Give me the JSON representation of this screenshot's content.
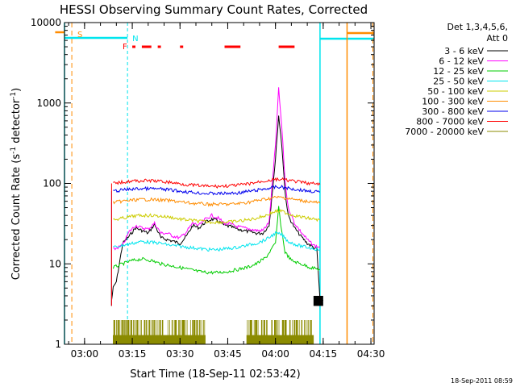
{
  "chart_data": {
    "type": "line",
    "title": "HESSI Observing Summary Count Rates, Corrected",
    "xlabel": "Start Time (18-Sep-11 02:53:42)",
    "ylabel": "Corrected Count Rate (s",
    "ylabel_sup1": "-1",
    "ylabel_mid": " detector",
    "ylabel_sup2": "-1",
    "ylabel_end": ")",
    "footer": "18-Sep-2011 08:59",
    "y_scale": "log",
    "ylim": [
      1,
      10000
    ],
    "xlim": [
      "02:53:42",
      "04:31:00"
    ],
    "x_ticks": [
      "03:00",
      "03:15",
      "03:30",
      "03:45",
      "04:00",
      "04:15",
      "04:30"
    ],
    "y_ticks": [
      "1",
      "10",
      "100",
      "1000",
      "10000"
    ],
    "legend": {
      "header_line1": "Det 1,3,4,5,6,",
      "header_line2": "Att 0",
      "placement": "top-right, outside plot"
    },
    "flags": {
      "saa_label": "S",
      "night_label": "N",
      "flare_label": "F",
      "saa_color": "#ff8c00",
      "night_color": "#00e5ee",
      "flare_color": "#ff0000",
      "saa_start": "02:56:00",
      "saa_end_1": "03:08:30",
      "saa_return": "04:22:30",
      "night_end": "03:13:30",
      "night_return": "04:14:00",
      "flare_segments": [
        [
          "03:15:00",
          "03:16:00"
        ],
        [
          "03:18:00",
          "03:21:00"
        ],
        [
          "03:23:00",
          "03:24:00"
        ],
        [
          "03:30:00",
          "03:31:00"
        ],
        [
          "03:44:00",
          "03:49:00"
        ],
        [
          "04:01:00",
          "04:06:00"
        ]
      ]
    },
    "data_window": [
      "03:08:30",
      "04:15:00"
    ],
    "series": [
      {
        "name": "3 - 6 keV",
        "color": "#000000",
        "x": [
          "03:08:30",
          "03:09:00",
          "03:10:00",
          "03:12:00",
          "03:14:00",
          "03:16:00",
          "03:18:00",
          "03:20:00",
          "03:22:00",
          "03:24:00",
          "03:26:00",
          "03:28:00",
          "03:30:00",
          "03:32:00",
          "03:34:00",
          "03:36:00",
          "03:38:00",
          "03:40:00",
          "03:42:00",
          "03:44:00",
          "03:46:00",
          "03:48:00",
          "03:50:00",
          "03:52:00",
          "03:54:00",
          "03:56:00",
          "03:58:00",
          "04:00:00",
          "04:01:00",
          "04:02:00",
          "04:03:00",
          "04:04:00",
          "04:06:00",
          "04:08:00",
          "04:10:00",
          "04:12:00",
          "04:13:00",
          "04:14:00",
          "04:15:00"
        ],
        "y": [
          3.5,
          5,
          6,
          18,
          22,
          28,
          26,
          24,
          31,
          21,
          20,
          19,
          18,
          22,
          30,
          28,
          33,
          36,
          34,
          30,
          29,
          27,
          26,
          25,
          24,
          24,
          30,
          200,
          700,
          300,
          80,
          40,
          28,
          22,
          18,
          16,
          15,
          3.5,
          3.5
        ]
      },
      {
        "name": "6 - 12 keV",
        "color": "#ff00ff",
        "x": [
          "03:09:00",
          "03:12:00",
          "03:14:00",
          "03:16:00",
          "03:18:00",
          "03:20:00",
          "03:22:00",
          "03:24:00",
          "03:26:00",
          "03:28:00",
          "03:30:00",
          "03:32:00",
          "03:34:00",
          "03:36:00",
          "03:38:00",
          "03:40:00",
          "03:42:00",
          "03:44:00",
          "03:46:00",
          "03:48:00",
          "03:50:00",
          "03:52:00",
          "03:54:00",
          "03:56:00",
          "03:58:00",
          "04:00:00",
          "04:01:00",
          "04:02:00",
          "04:03:00",
          "04:04:00",
          "04:06:00",
          "04:08:00",
          "04:10:00",
          "04:12:00",
          "04:14:00"
        ],
        "y": [
          15,
          17,
          25,
          30,
          28,
          27,
          32,
          24,
          24,
          22,
          21,
          25,
          32,
          30,
          36,
          40,
          37,
          32,
          31,
          29,
          28,
          27,
          26,
          26,
          33,
          300,
          1500,
          500,
          110,
          50,
          32,
          25,
          20,
          17,
          16
        ]
      },
      {
        "name": "12 - 25 keV",
        "color": "#00cc00",
        "x": [
          "03:09:00",
          "03:12:00",
          "03:15:00",
          "03:18:00",
          "03:21:00",
          "03:24:00",
          "03:27:00",
          "03:30:00",
          "03:33:00",
          "03:36:00",
          "03:39:00",
          "03:42:00",
          "03:45:00",
          "03:48:00",
          "03:51:00",
          "03:54:00",
          "03:57:00",
          "04:00:00",
          "04:01:00",
          "04:02:00",
          "04:03:00",
          "04:05:00",
          "04:08:00",
          "04:11:00",
          "04:14:00"
        ],
        "y": [
          9,
          10,
          11,
          11.5,
          11,
          10,
          9.5,
          9,
          8.5,
          8,
          7.8,
          7.8,
          8,
          8.5,
          9,
          10,
          12,
          18,
          50,
          25,
          14,
          11,
          10,
          9,
          8.5
        ]
      },
      {
        "name": "25 - 50 keV",
        "color": "#00e5ee",
        "x": [
          "03:09:00",
          "03:12:00",
          "03:15:00",
          "03:18:00",
          "03:21:00",
          "03:24:00",
          "03:27:00",
          "03:30:00",
          "03:33:00",
          "03:36:00",
          "03:39:00",
          "03:42:00",
          "03:45:00",
          "03:48:00",
          "03:51:00",
          "03:54:00",
          "03:57:00",
          "04:00:00",
          "04:02:00",
          "04:04:00",
          "04:07:00",
          "04:10:00",
          "04:14:00"
        ],
        "y": [
          16,
          17,
          18,
          19,
          18.5,
          18,
          17,
          16.5,
          16,
          15.5,
          15,
          15,
          15.5,
          16,
          17,
          18,
          20,
          24,
          23,
          19,
          17,
          16,
          15
        ]
      },
      {
        "name": "50 - 100 keV",
        "color": "#cccc00",
        "x": [
          "03:09:00",
          "03:12:00",
          "03:15:00",
          "03:18:00",
          "03:21:00",
          "03:24:00",
          "03:27:00",
          "03:30:00",
          "03:33:00",
          "03:36:00",
          "03:39:00",
          "03:42:00",
          "03:45:00",
          "03:48:00",
          "03:51:00",
          "03:54:00",
          "03:57:00",
          "04:00:00",
          "04:02:00",
          "04:04:00",
          "04:07:00",
          "04:10:00",
          "04:14:00"
        ],
        "y": [
          35,
          37,
          39,
          40,
          40,
          39,
          38,
          36,
          35,
          34,
          33,
          33,
          33,
          34,
          35,
          37,
          40,
          45,
          45,
          42,
          39,
          37,
          35
        ]
      },
      {
        "name": "100 - 300 keV",
        "color": "#ff8c00",
        "x": [
          "03:09:00",
          "03:12:00",
          "03:15:00",
          "03:18:00",
          "03:21:00",
          "03:24:00",
          "03:27:00",
          "03:30:00",
          "03:33:00",
          "03:36:00",
          "03:39:00",
          "03:42:00",
          "03:45:00",
          "03:48:00",
          "03:51:00",
          "03:54:00",
          "03:57:00",
          "04:00:00",
          "04:02:00",
          "04:04:00",
          "04:07:00",
          "04:10:00",
          "04:14:00"
        ],
        "y": [
          58,
          60,
          62,
          63,
          63,
          62,
          61,
          59,
          57,
          56,
          55,
          55,
          55,
          56,
          58,
          61,
          64,
          67,
          67,
          65,
          62,
          60,
          57
        ]
      },
      {
        "name": "300 - 800 keV",
        "color": "#0000ee",
        "x": [
          "03:09:00",
          "03:12:00",
          "03:15:00",
          "03:18:00",
          "03:21:00",
          "03:24:00",
          "03:27:00",
          "03:30:00",
          "03:33:00",
          "03:36:00",
          "03:39:00",
          "03:42:00",
          "03:45:00",
          "03:48:00",
          "03:51:00",
          "03:54:00",
          "03:57:00",
          "04:00:00",
          "04:02:00",
          "04:04:00",
          "04:07:00",
          "04:10:00",
          "04:14:00"
        ],
        "y": [
          80,
          83,
          85,
          86,
          86,
          85,
          83,
          80,
          78,
          76,
          75,
          75,
          75,
          76,
          79,
          82,
          86,
          90,
          90,
          87,
          84,
          81,
          78
        ]
      },
      {
        "name": "800 - 7000 keV",
        "color": "#ff0000",
        "x": [
          "03:09:00",
          "03:12:00",
          "03:15:00",
          "03:18:00",
          "03:21:00",
          "03:24:00",
          "03:27:00",
          "03:30:00",
          "03:33:00",
          "03:36:00",
          "03:39:00",
          "03:42:00",
          "03:45:00",
          "03:48:00",
          "03:51:00",
          "03:54:00",
          "03:57:00",
          "04:00:00",
          "04:02:00",
          "04:04:00",
          "04:07:00",
          "04:10:00",
          "04:14:00"
        ],
        "y": [
          100,
          104,
          107,
          108,
          108,
          106,
          103,
          99,
          96,
          94,
          92,
          92,
          93,
          95,
          98,
          103,
          108,
          112,
          112,
          109,
          105,
          101,
          97
        ]
      },
      {
        "name": "7000 - 20000 keV",
        "color": "#8b8b00",
        "x": [],
        "y": []
      }
    ]
  }
}
